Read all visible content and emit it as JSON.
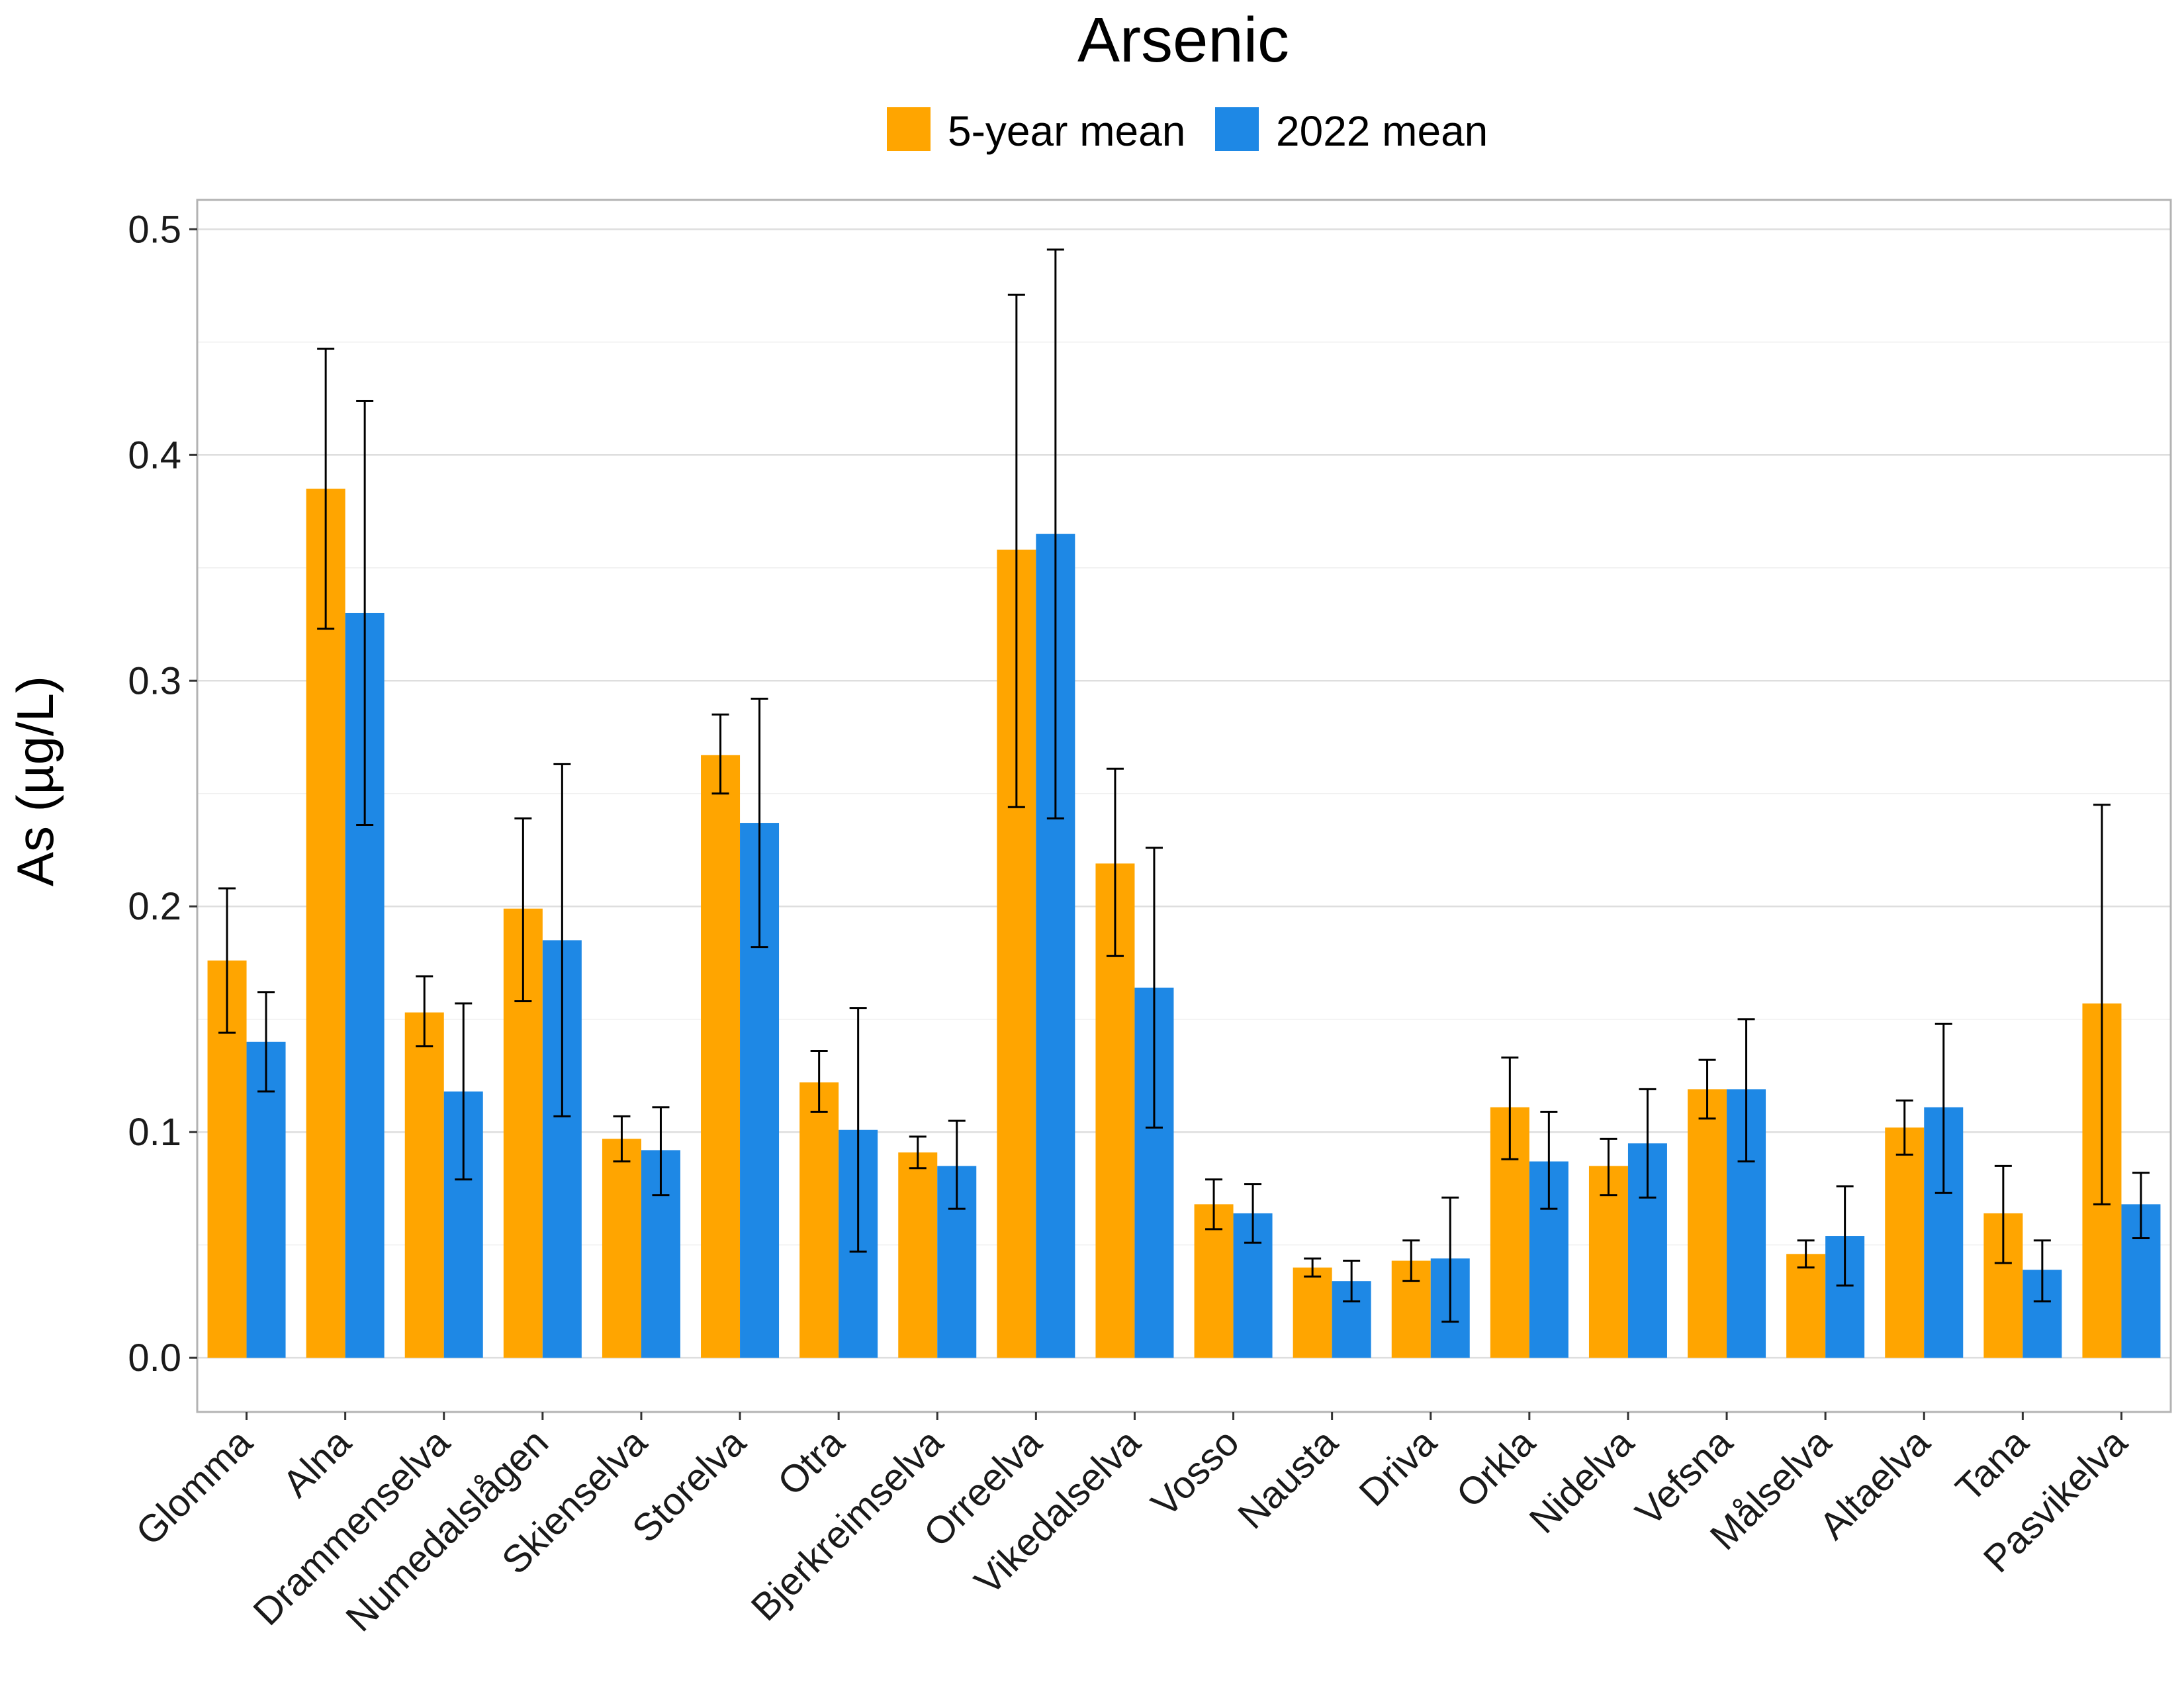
{
  "chart_data": {
    "type": "bar",
    "title": "Arsenic",
    "xlabel": "",
    "ylabel": "As (µg/L)",
    "ylim": [
      -0.024,
      0.513
    ],
    "yticks": [
      0.0,
      0.1,
      0.2,
      0.3,
      0.4,
      0.5
    ],
    "ytick_labels": [
      "0.0",
      "0.1",
      "0.2",
      "0.3",
      "0.4",
      "0.5"
    ],
    "grid": true,
    "legend_position": "top",
    "categories": [
      "Glomma",
      "Alna",
      "Drammenselva",
      "Numedalslågen",
      "Skienselva",
      "Storelva",
      "Otra",
      "Bjerkreimselva",
      "Orreelva",
      "Vikedalselva",
      "Vosso",
      "Nausta",
      "Driva",
      "Orkla",
      "Nidelva",
      "Vefsna",
      "Målselva",
      "Altaelva",
      "Tana",
      "Pasvikelva"
    ],
    "series": [
      {
        "name": "5-year mean",
        "color": "#FFA500",
        "values": [
          0.176,
          0.385,
          0.153,
          0.199,
          0.097,
          0.267,
          0.122,
          0.091,
          0.358,
          0.219,
          0.068,
          0.04,
          0.043,
          0.111,
          0.085,
          0.119,
          0.046,
          0.102,
          0.064,
          0.157
        ],
        "error_low": [
          0.144,
          0.323,
          0.138,
          0.158,
          0.087,
          0.25,
          0.109,
          0.084,
          0.244,
          0.178,
          0.057,
          0.036,
          0.034,
          0.088,
          0.072,
          0.106,
          0.04,
          0.09,
          0.042,
          0.068
        ],
        "error_high": [
          0.208,
          0.447,
          0.169,
          0.239,
          0.107,
          0.285,
          0.136,
          0.098,
          0.471,
          0.261,
          0.079,
          0.044,
          0.052,
          0.133,
          0.097,
          0.132,
          0.052,
          0.114,
          0.085,
          0.245
        ]
      },
      {
        "name": "2022 mean",
        "color": "#1E88E5",
        "values": [
          0.14,
          0.33,
          0.118,
          0.185,
          0.092,
          0.237,
          0.101,
          0.085,
          0.365,
          0.164,
          0.064,
          0.034,
          0.044,
          0.087,
          0.095,
          0.119,
          0.054,
          0.111,
          0.039,
          0.068
        ],
        "error_low": [
          0.118,
          0.236,
          0.079,
          0.107,
          0.072,
          0.182,
          0.047,
          0.066,
          0.239,
          0.102,
          0.051,
          0.025,
          0.016,
          0.066,
          0.071,
          0.087,
          0.032,
          0.073,
          0.025,
          0.053
        ],
        "error_high": [
          0.162,
          0.424,
          0.157,
          0.263,
          0.111,
          0.292,
          0.155,
          0.105,
          0.491,
          0.226,
          0.077,
          0.043,
          0.071,
          0.109,
          0.119,
          0.15,
          0.076,
          0.148,
          0.052,
          0.082
        ]
      }
    ]
  }
}
